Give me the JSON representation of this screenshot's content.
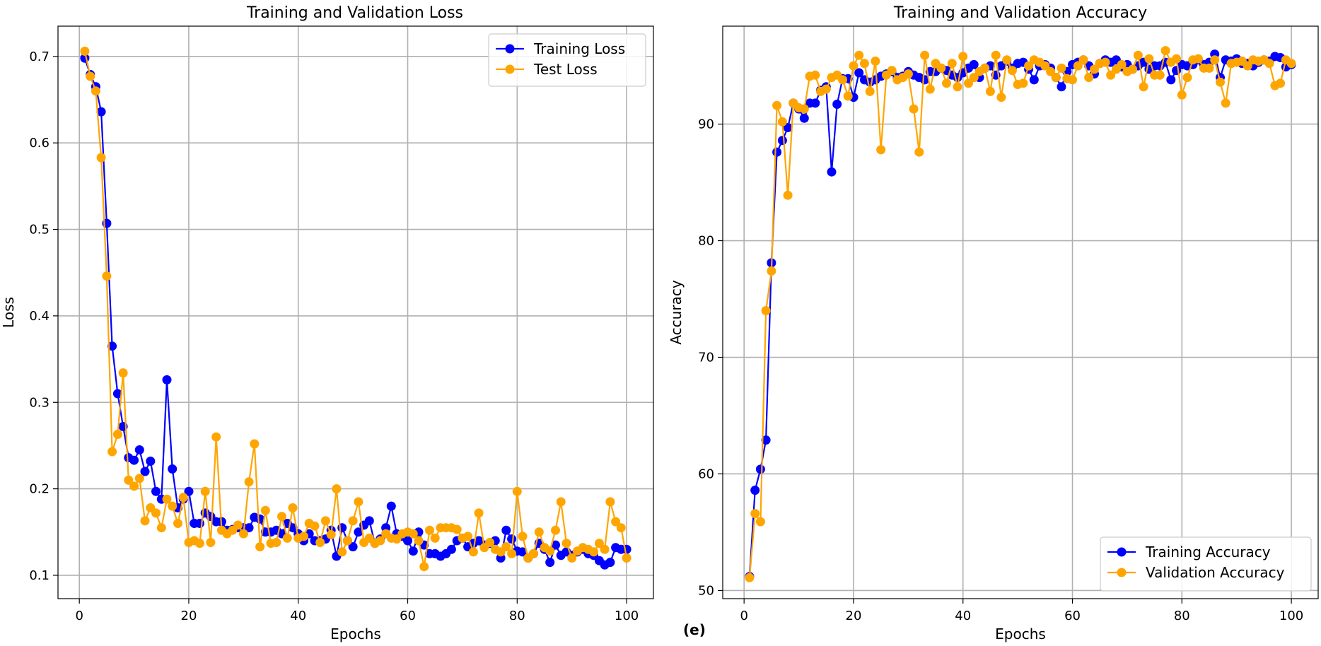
{
  "panel_label": "(e)",
  "colors": {
    "train": "#0000ff",
    "val": "#ffa500",
    "grid": "#b0b0b0"
  },
  "chart_data": [
    {
      "type": "line",
      "title": "Training and Validation Loss",
      "xlabel": "Epochs",
      "ylabel": "Loss",
      "xlim": [
        -3.9,
        104.9
      ],
      "ylim": [
        0.073,
        0.735
      ],
      "xticks": [
        0,
        20,
        40,
        60,
        80,
        100
      ],
      "yticks": [
        0.1,
        0.2,
        0.3,
        0.4,
        0.5,
        0.6,
        0.7
      ],
      "ytick_labels": [
        "0.1",
        "0.2",
        "0.3",
        "0.4",
        "0.5",
        "0.6",
        "0.7"
      ],
      "legend_position": "top-right",
      "grid": true,
      "series": [
        {
          "name": "Training Loss",
          "color": "train",
          "values": [
            0.698,
            0.679,
            0.665,
            0.636,
            0.507,
            0.365,
            0.31,
            0.272,
            0.236,
            0.233,
            0.245,
            0.22,
            0.232,
            0.197,
            0.188,
            0.326,
            0.223,
            0.178,
            0.188,
            0.197,
            0.16,
            0.16,
            0.172,
            0.168,
            0.162,
            0.162,
            0.152,
            0.153,
            0.155,
            0.155,
            0.155,
            0.167,
            0.165,
            0.15,
            0.15,
            0.152,
            0.148,
            0.16,
            0.155,
            0.148,
            0.14,
            0.148,
            0.14,
            0.14,
            0.142,
            0.152,
            0.122,
            0.155,
            0.14,
            0.133,
            0.15,
            0.158,
            0.163,
            0.137,
            0.142,
            0.155,
            0.18,
            0.148,
            0.145,
            0.14,
            0.128,
            0.15,
            0.135,
            0.125,
            0.125,
            0.122,
            0.125,
            0.13,
            0.14,
            0.143,
            0.133,
            0.137,
            0.14,
            0.135,
            0.137,
            0.14,
            0.12,
            0.152,
            0.142,
            0.128,
            0.127,
            0.12,
            0.125,
            0.137,
            0.13,
            0.115,
            0.135,
            0.123,
            0.127,
            0.123,
            0.127,
            0.13,
            0.125,
            0.123,
            0.117,
            0.112,
            0.115,
            0.132,
            0.13,
            0.13
          ]
        },
        {
          "name": "Test Loss",
          "color": "val",
          "values": [
            0.706,
            0.677,
            0.66,
            0.583,
            0.446,
            0.243,
            0.263,
            0.334,
            0.21,
            0.203,
            0.212,
            0.163,
            0.178,
            0.172,
            0.155,
            0.188,
            0.18,
            0.16,
            0.19,
            0.138,
            0.14,
            0.137,
            0.197,
            0.138,
            0.26,
            0.152,
            0.148,
            0.152,
            0.158,
            0.148,
            0.208,
            0.252,
            0.133,
            0.175,
            0.137,
            0.138,
            0.168,
            0.143,
            0.178,
            0.143,
            0.145,
            0.16,
            0.157,
            0.138,
            0.163,
            0.147,
            0.2,
            0.127,
            0.14,
            0.163,
            0.185,
            0.138,
            0.143,
            0.137,
            0.14,
            0.148,
            0.143,
            0.142,
            0.148,
            0.15,
            0.148,
            0.14,
            0.11,
            0.152,
            0.143,
            0.155,
            0.155,
            0.155,
            0.153,
            0.143,
            0.145,
            0.127,
            0.172,
            0.132,
            0.138,
            0.13,
            0.127,
            0.133,
            0.125,
            0.197,
            0.145,
            0.12,
            0.125,
            0.15,
            0.132,
            0.128,
            0.152,
            0.185,
            0.137,
            0.12,
            0.128,
            0.132,
            0.13,
            0.127,
            0.137,
            0.13,
            0.185,
            0.162,
            0.155,
            0.12
          ]
        }
      ]
    },
    {
      "type": "line",
      "title": "Training and Validation Accuracy",
      "xlabel": "Epochs",
      "ylabel": "Accuracy",
      "xlim": [
        -3.9,
        104.9
      ],
      "ylim": [
        49.3,
        98.4
      ],
      "xticks": [
        0,
        20,
        40,
        60,
        80,
        100
      ],
      "yticks": [
        50,
        60,
        70,
        80,
        90
      ],
      "ytick_labels": [
        "50",
        "60",
        "70",
        "80",
        "90"
      ],
      "legend_position": "bottom-right",
      "grid": true,
      "series": [
        {
          "name": "Training Accuracy",
          "color": "train",
          "values": [
            51.2,
            58.6,
            60.4,
            62.9,
            78.1,
            87.6,
            88.6,
            89.7,
            91.8,
            91.3,
            90.5,
            91.8,
            91.8,
            92.9,
            93.2,
            85.9,
            91.7,
            93.9,
            93.9,
            92.3,
            94.4,
            93.8,
            93.6,
            93.8,
            94.1,
            94.3,
            94.5,
            94.0,
            94.1,
            94.5,
            94.2,
            94.0,
            93.8,
            94.5,
            94.5,
            94.8,
            94.6,
            94.2,
            94.0,
            94.4,
            94.8,
            95.1,
            94.0,
            94.8,
            95.0,
            94.2,
            95.0,
            95.4,
            94.8,
            95.2,
            95.3,
            94.7,
            93.8,
            95.0,
            95.1,
            94.8,
            94.0,
            93.2,
            94.5,
            95.1,
            95.3,
            95.5,
            95.0,
            94.3,
            95.2,
            95.5,
            95.3,
            95.5,
            94.9,
            95.1,
            94.7,
            95.0,
            95.3,
            94.7,
            95.0,
            95.0,
            95.3,
            93.8,
            94.6,
            95.1,
            95.0,
            95.1,
            95.5,
            95.1,
            95.3,
            96.0,
            94.0,
            95.5,
            95.4,
            95.6,
            95.2,
            95.2,
            95.0,
            95.3,
            95.5,
            95.4,
            95.8,
            95.7,
            94.9,
            95.1
          ]
        },
        {
          "name": "Validation Accuracy",
          "color": "val",
          "values": [
            51.1,
            56.6,
            55.9,
            74.0,
            77.4,
            91.6,
            90.2,
            83.9,
            91.8,
            91.4,
            91.3,
            94.1,
            94.2,
            92.8,
            93.0,
            94.0,
            94.2,
            93.8,
            92.4,
            95.0,
            95.9,
            95.2,
            92.8,
            95.4,
            87.8,
            94.2,
            94.6,
            93.8,
            94.0,
            94.3,
            91.3,
            87.6,
            95.9,
            93.0,
            95.2,
            94.8,
            93.5,
            95.2,
            93.2,
            95.8,
            93.5,
            94.0,
            94.5,
            94.8,
            92.8,
            95.9,
            92.3,
            95.5,
            94.6,
            93.4,
            93.5,
            95.0,
            95.5,
            95.3,
            95.0,
            94.5,
            94.0,
            94.8,
            93.9,
            93.8,
            95.0,
            95.5,
            94.0,
            94.7,
            95.2,
            95.3,
            94.2,
            94.7,
            95.1,
            94.5,
            94.7,
            95.9,
            93.2,
            95.6,
            94.2,
            94.2,
            96.3,
            95.3,
            95.6,
            92.5,
            94.0,
            95.5,
            95.6,
            94.8,
            94.8,
            95.5,
            93.6,
            91.8,
            95.2,
            95.3,
            95.4,
            95.0,
            95.5,
            95.4,
            95.5,
            95.2,
            93.3,
            93.5,
            95.5,
            95.2
          ]
        }
      ]
    }
  ]
}
